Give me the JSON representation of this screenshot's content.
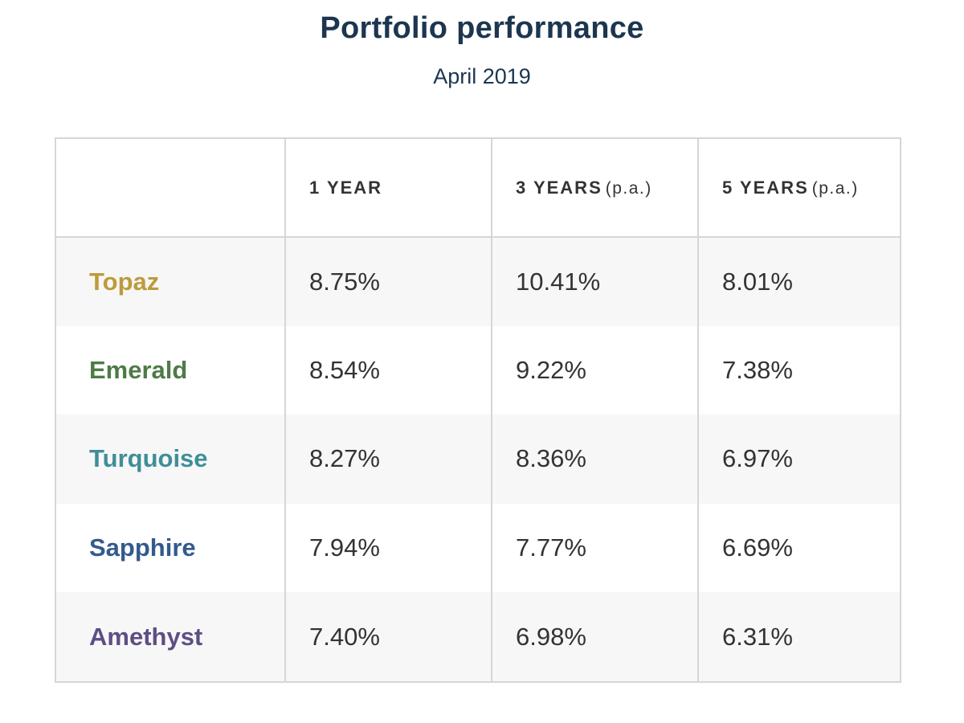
{
  "title": "Portfolio performance",
  "subtitle": "April 2019",
  "chart_data": {
    "type": "table",
    "columns": [
      {
        "label": "",
        "suffix": ""
      },
      {
        "label": "1 YEAR",
        "suffix": ""
      },
      {
        "label": "3 YEARS",
        "suffix": "(p.a.)"
      },
      {
        "label": "5 YEARS",
        "suffix": "(p.a.)"
      }
    ],
    "rows": [
      {
        "name": "Topaz",
        "color": "#bd9b3c",
        "values": [
          "8.75%",
          "10.41%",
          "8.01%"
        ]
      },
      {
        "name": "Emerald",
        "color": "#4f7a47",
        "values": [
          "8.54%",
          "9.22%",
          "7.38%"
        ]
      },
      {
        "name": "Turquoise",
        "color": "#3f8e98",
        "values": [
          "8.27%",
          "8.36%",
          "6.97%"
        ]
      },
      {
        "name": "Sapphire",
        "color": "#345a8c",
        "values": [
          "7.94%",
          "7.77%",
          "6.69%"
        ]
      },
      {
        "name": "Amethyst",
        "color": "#5e4e84",
        "values": [
          "7.40%",
          "6.98%",
          "6.31%"
        ]
      }
    ]
  }
}
